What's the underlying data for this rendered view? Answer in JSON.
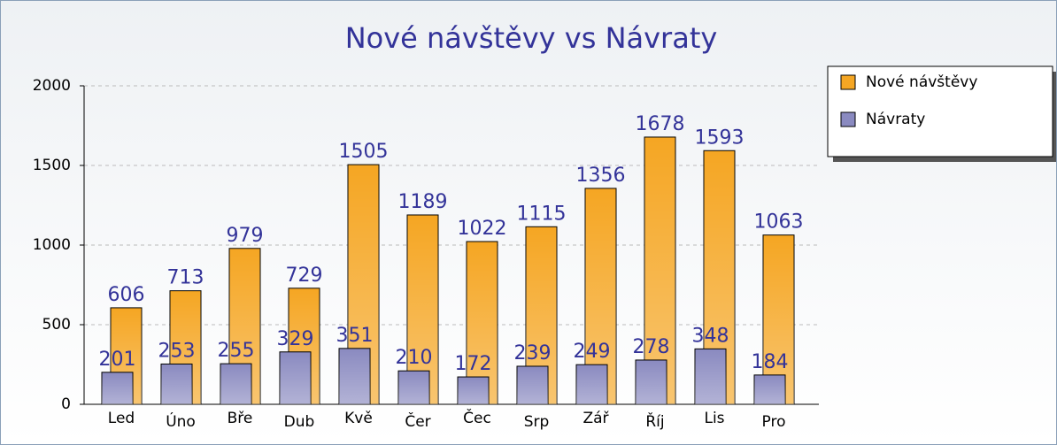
{
  "chart_data": {
    "type": "bar",
    "title": "Nové návštěvy vs Návraty",
    "categories": [
      "Led",
      "Úno",
      "Bře",
      "Dub",
      "Kvě",
      "Čer",
      "Čec",
      "Srp",
      "Zář",
      "Říj",
      "Lis",
      "Pro"
    ],
    "series": [
      {
        "name": "Nové návštěvy",
        "color": "#f5a623",
        "values": [
          606,
          713,
          979,
          729,
          1505,
          1189,
          1022,
          1115,
          1356,
          1678,
          1593,
          1063
        ]
      },
      {
        "name": "Návraty",
        "color": "#8a8ac0",
        "values": [
          201,
          253,
          255,
          329,
          351,
          210,
          172,
          239,
          249,
          278,
          348,
          184
        ]
      }
    ],
    "ylim": [
      0,
      2000
    ],
    "yticks": [
      0,
      500,
      1000,
      1500,
      2000
    ],
    "grid": true,
    "legend": "right"
  }
}
